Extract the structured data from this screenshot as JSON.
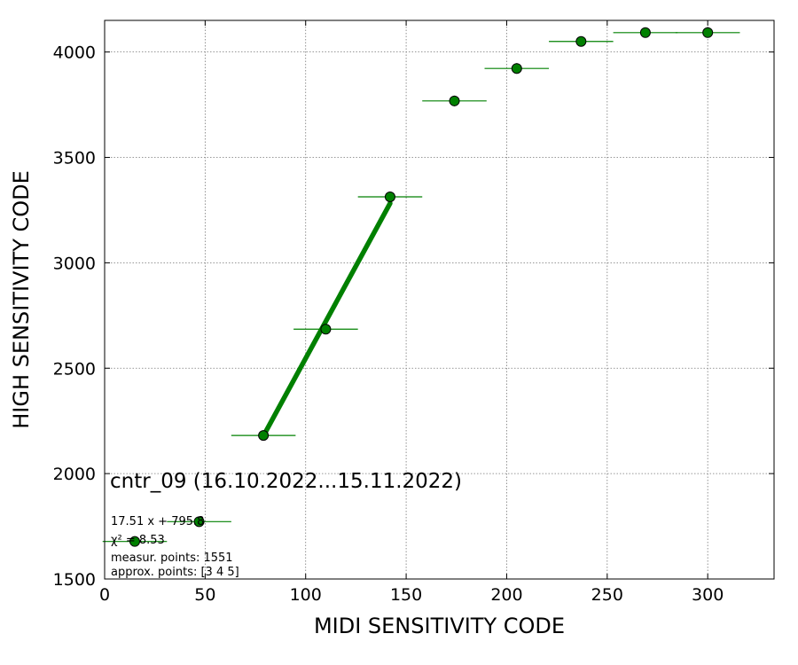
{
  "chart_data": {
    "type": "scatter",
    "xlabel": "MIDI SENSITIVITY CODE",
    "ylabel": "HIGH SENSITIVITY CODE",
    "xlim": [
      0,
      333
    ],
    "ylim": [
      1500,
      4150
    ],
    "xticks": [
      0,
      50,
      100,
      150,
      200,
      250,
      300
    ],
    "yticks": [
      1500,
      2000,
      2500,
      3000,
      3500,
      4000
    ],
    "grid": true,
    "grid_style": "dotted",
    "marker_color": "#008000",
    "errorbar_color": "#008000",
    "fit_color": "#008000",
    "points": [
      {
        "x": 15,
        "y": 1678,
        "xerr": 16,
        "yerr": 8
      },
      {
        "x": 47,
        "y": 1772,
        "xerr": 16,
        "yerr": 10
      },
      {
        "x": 79,
        "y": 2181,
        "xerr": 16,
        "yerr": 12
      },
      {
        "x": 110,
        "y": 2685,
        "xerr": 16,
        "yerr": 15
      },
      {
        "x": 142,
        "y": 3313,
        "xerr": 16,
        "yerr": 25
      },
      {
        "x": 174,
        "y": 3768,
        "xerr": 16,
        "yerr": 25
      },
      {
        "x": 205,
        "y": 3922,
        "xerr": 16,
        "yerr": 25
      },
      {
        "x": 237,
        "y": 4050,
        "xerr": 16,
        "yerr": 10
      },
      {
        "x": 269,
        "y": 4092,
        "xerr": 16,
        "yerr": 8
      },
      {
        "x": 300,
        "y": 4092,
        "xerr": 16,
        "yerr": 8
      }
    ],
    "fit": {
      "slope": 17.51,
      "intercept": 795.8,
      "x_from": 79,
      "x_to": 142
    },
    "annotations": {
      "title": "cntr_09 (16.10.2022...15.11.2022)",
      "equation": "17.51 x + 795.8",
      "chi2": "χ² = 8.53",
      "measur_points": "measur. points: 1551",
      "approx_points": "approx. points: [3 4 5]"
    }
  }
}
